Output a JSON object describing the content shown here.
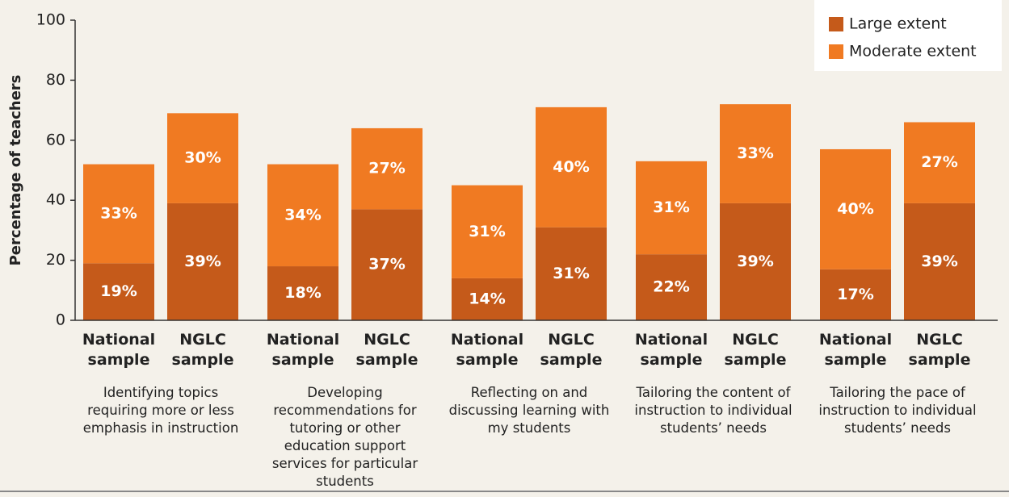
{
  "chart_data": {
    "type": "stacked_bar",
    "ylabel": "Percentage of teachers",
    "categories": [
      "National sample",
      "NGLC sample",
      "National sample",
      "NGLC sample",
      "National sample",
      "NGLC sample",
      "National sample",
      "NGLC sample",
      "National sample",
      "NGLC sample"
    ],
    "groups": [
      "Identifying topics requiring more or less emphasis in instruction",
      "Developing recommendations for tutoring or other education support services for particular students",
      "Reflecting on and discussing learning with my students",
      "Tailoring the content of instruction to individual students’ needs",
      "Tailoring the pace of instruction to individual students’ needs"
    ],
    "series": [
      {
        "name": "Large extent",
        "color": "#c55a1a",
        "values": [
          19,
          39,
          18,
          37,
          14,
          31,
          22,
          39,
          17,
          39
        ],
        "value_labels": [
          "19%",
          "39%",
          "18%",
          "37%",
          "14%",
          "31%",
          "22%",
          "39%",
          "17%",
          "39%"
        ]
      },
      {
        "name": "Moderate extent",
        "color": "#f07a22",
        "values": [
          33,
          30,
          34,
          27,
          31,
          40,
          31,
          33,
          40,
          27
        ],
        "value_labels": [
          "33%",
          "30%",
          "34%",
          "27%",
          "31%",
          "40%",
          "31%",
          "33%",
          "40%",
          "27%"
        ]
      }
    ],
    "ylim": [
      0,
      100
    ],
    "yticks": [
      0,
      20,
      40,
      60,
      80,
      100
    ],
    "legend": "upper right"
  }
}
